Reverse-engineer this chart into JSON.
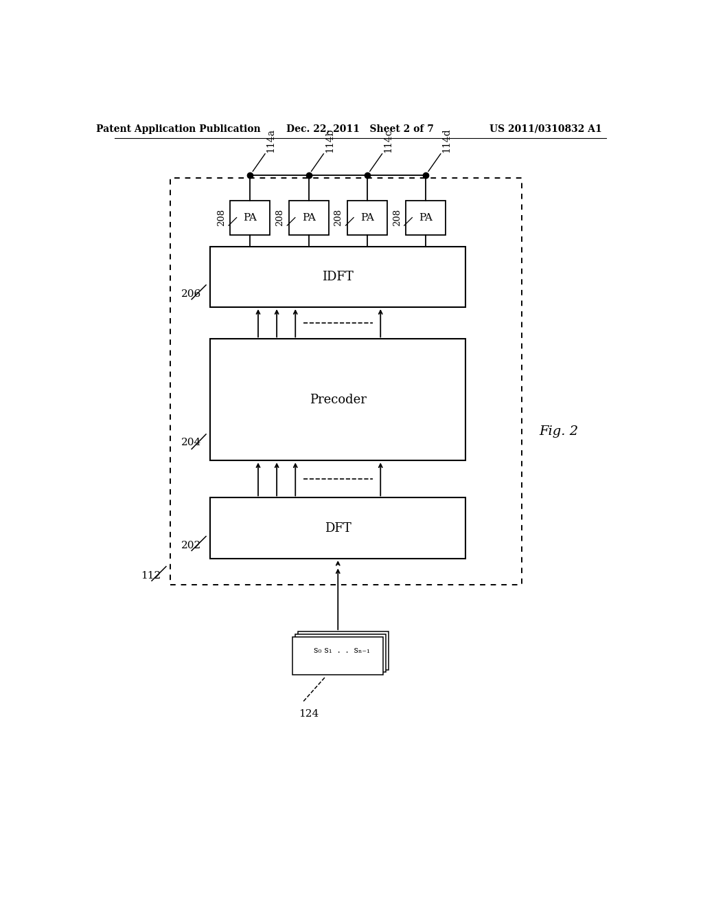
{
  "header_left": "Patent Application Publication",
  "header_center": "Dec. 22, 2011   Sheet 2 of 7",
  "header_right": "US 2011/0310832 A1",
  "fig_label": "Fig. 2",
  "bg_color": "#ffffff",
  "lc": "#000000",
  "dft_text": "DFT",
  "dft_ref": "202",
  "precoder_text": "Precoder",
  "precoder_ref": "204",
  "idft_text": "IDFT",
  "idft_ref": "206",
  "pa_ref": "208",
  "pa_text": "PA",
  "antenna_labels": [
    "114a",
    "114b",
    "114c",
    "114d"
  ],
  "outer_ref": "112",
  "input_ref": "124",
  "input_text": "s₀ s₁  .  .  sₙ₋₁"
}
